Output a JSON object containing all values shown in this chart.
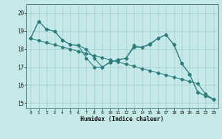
{
  "xlabel": "Humidex (Indice chaleur)",
  "background_color": "#c5e8e8",
  "grid_color": "#9ecece",
  "line_color": "#2e7d7d",
  "xlim": [
    -0.5,
    23.5
  ],
  "ylim": [
    14.7,
    20.5
  ],
  "yticks": [
    15,
    16,
    17,
    18,
    19,
    20
  ],
  "xticks": [
    0,
    1,
    2,
    3,
    4,
    5,
    6,
    7,
    8,
    9,
    10,
    11,
    12,
    13,
    14,
    15,
    16,
    17,
    18,
    19,
    20,
    21,
    22,
    23
  ],
  "series_straight": [
    18.6,
    18.48,
    18.36,
    18.24,
    18.12,
    18.0,
    17.88,
    17.76,
    17.64,
    17.52,
    17.4,
    17.28,
    17.16,
    17.04,
    16.92,
    16.8,
    16.68,
    16.56,
    16.44,
    16.32,
    16.2,
    16.08,
    15.5,
    15.2
  ],
  "series_wavy1": [
    18.6,
    19.55,
    19.1,
    19.0,
    18.5,
    18.25,
    18.2,
    17.5,
    17.0,
    17.0,
    17.3,
    17.4,
    17.5,
    18.2,
    18.1,
    18.3,
    18.6,
    18.8,
    18.25,
    17.2,
    16.6,
    15.6,
    15.4,
    15.2
  ],
  "series_wavy2": [
    18.6,
    19.55,
    19.1,
    19.0,
    18.5,
    18.25,
    18.2,
    18.0,
    17.5,
    17.0,
    17.25,
    17.4,
    17.5,
    18.1,
    18.1,
    18.25,
    18.6,
    18.8,
    18.25,
    17.2,
    16.6,
    15.6,
    15.4,
    15.2
  ]
}
